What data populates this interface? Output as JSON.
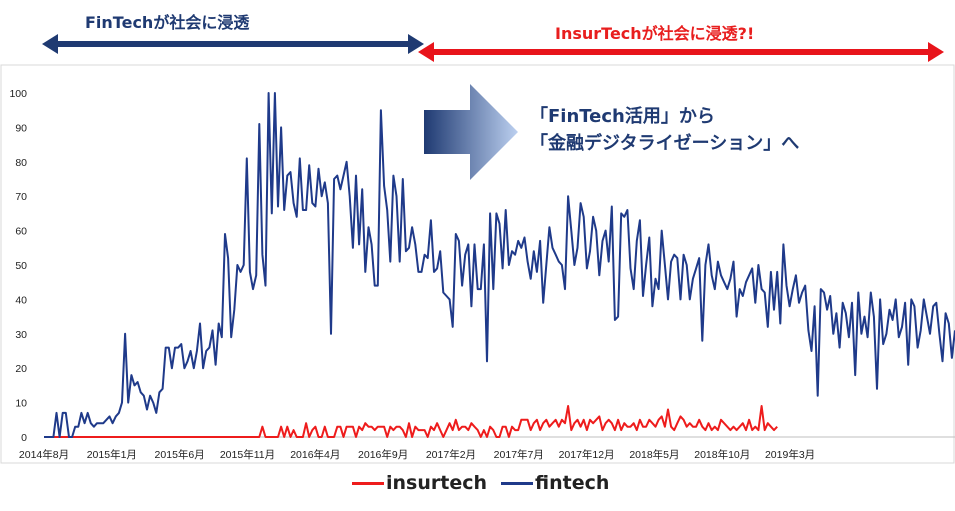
{
  "banner": {
    "fintech_era": "FinTechが社会に浸透",
    "insurtech_era": "InsurTechが社会に浸透?!"
  },
  "callout": {
    "line1": "「FinTech活用」から",
    "line2": "「金融デジタライゼーション」へ"
  },
  "colors": {
    "fintech": "#1f3a8a",
    "insurtech": "#ee1c1c",
    "arrow_blue": "#1f3a72",
    "arrow_red": "#e8141b"
  },
  "chart_data": {
    "type": "line",
    "title": "",
    "xlabel": "",
    "ylabel": "",
    "ylim": [
      0,
      100
    ],
    "yticks": [
      0,
      10,
      20,
      30,
      40,
      50,
      60,
      70,
      80,
      90,
      100
    ],
    "grid": false,
    "legend_position": "bottom",
    "xticks": [
      "2014年8月",
      "2015年1月",
      "2015年6月",
      "2015年11月",
      "2016年4月",
      "2016年9月",
      "2017年2月",
      "2017年7月",
      "2017年12月",
      "2018年5月",
      "2018年10月",
      "2019年3月"
    ],
    "x_start": "2014-08",
    "series": [
      {
        "name": "insurtech",
        "values": [
          0,
          0,
          0,
          0,
          0,
          0,
          0,
          0,
          0,
          0,
          0,
          0,
          0,
          0,
          0,
          0,
          0,
          0,
          0,
          0,
          0,
          0,
          0,
          0,
          0,
          0,
          0,
          0,
          0,
          0,
          0,
          0,
          0,
          0,
          0,
          0,
          0,
          0,
          0,
          0,
          0,
          0,
          0,
          0,
          0,
          0,
          0,
          0,
          0,
          0,
          0,
          0,
          0,
          0,
          0,
          0,
          0,
          0,
          0,
          0,
          0,
          0,
          0,
          0,
          0,
          0,
          0,
          0,
          0,
          0,
          3,
          0,
          0,
          0,
          0,
          0,
          3,
          0,
          3,
          0,
          2,
          0,
          0,
          0,
          4,
          0,
          2,
          3,
          0,
          0,
          3,
          0,
          0,
          0,
          3,
          3,
          0,
          3,
          3,
          3,
          0,
          3,
          2,
          4,
          3,
          3,
          2,
          3,
          3,
          3,
          0,
          3,
          2,
          3,
          3,
          2,
          0,
          4,
          0,
          3,
          2,
          2,
          2,
          0,
          3,
          2,
          4,
          2,
          0,
          2,
          4,
          2,
          5,
          2,
          3,
          3,
          2,
          4,
          3,
          2,
          0,
          2,
          0,
          3,
          2,
          0,
          0,
          3,
          3,
          0,
          3,
          2,
          2,
          5,
          5,
          5,
          2,
          4,
          5,
          2,
          4,
          5,
          3,
          4,
          5,
          3,
          5,
          4,
          9,
          2,
          4,
          5,
          3,
          5,
          2,
          5,
          4,
          5,
          6,
          2,
          4,
          5,
          4,
          2,
          5,
          2,
          4,
          3,
          3,
          4,
          2,
          5,
          3,
          3,
          5,
          4,
          3,
          5,
          6,
          3,
          8,
          3,
          2,
          4,
          6,
          5,
          3,
          4,
          3,
          3,
          5,
          3,
          2,
          4,
          2,
          3,
          2,
          5,
          4,
          3,
          2,
          3,
          2,
          3,
          4,
          2,
          5,
          2,
          3,
          2,
          9,
          2,
          4,
          3,
          2,
          3
        ]
      },
      {
        "name": "fintech",
        "values": [
          0,
          0,
          0,
          0,
          7,
          0,
          7,
          7,
          0,
          0,
          3,
          3,
          7,
          4,
          7,
          4,
          3,
          4,
          4,
          4,
          5,
          6,
          4,
          6,
          7,
          10,
          30,
          10,
          18,
          15,
          16,
          13,
          12,
          8,
          12,
          10,
          7,
          13,
          14,
          26,
          26,
          20,
          26,
          26,
          27,
          20,
          22,
          25,
          20,
          25,
          33,
          20,
          25,
          26,
          31,
          21,
          33,
          29,
          59,
          52,
          29,
          37,
          50,
          48,
          50,
          81,
          48,
          43,
          47,
          91,
          53,
          44,
          100,
          65,
          100,
          67,
          90,
          66,
          76,
          77,
          68,
          64,
          81,
          66,
          66,
          79,
          68,
          67,
          78,
          70,
          74,
          68,
          30,
          75,
          76,
          72,
          76,
          80,
          70,
          55,
          76,
          56,
          72,
          48,
          61,
          56,
          44,
          44,
          95,
          73,
          66,
          51,
          76,
          70,
          51,
          75,
          54,
          55,
          61,
          56,
          48,
          48,
          53,
          52,
          63,
          48,
          49,
          54,
          42,
          41,
          40,
          32,
          59,
          57,
          44,
          53,
          56,
          38,
          56,
          43,
          43,
          56,
          22,
          65,
          43,
          65,
          62,
          49,
          66,
          50,
          54,
          53,
          57,
          55,
          58,
          51,
          46,
          54,
          48,
          57,
          39,
          50,
          61,
          55,
          53,
          51,
          50,
          43,
          70,
          60,
          50,
          55,
          68,
          64,
          49,
          54,
          64,
          60,
          47,
          57,
          60,
          51,
          67,
          34,
          35,
          65,
          64,
          66,
          49,
          43,
          57,
          63,
          41,
          50,
          58,
          38,
          46,
          43,
          60,
          50,
          40,
          51,
          53,
          52,
          40,
          53,
          50,
          40,
          46,
          49,
          52,
          28,
          50,
          56,
          47,
          43,
          51,
          47,
          45,
          43,
          46,
          51,
          35,
          43,
          41,
          45,
          47,
          49,
          39,
          50,
          43,
          42,
          32,
          48,
          37,
          48,
          33,
          56,
          44,
          38,
          43,
          47,
          39,
          42,
          44,
          31,
          25,
          38,
          12,
          43,
          42,
          37,
          41,
          30,
          36,
          26,
          39,
          36,
          29,
          39,
          18,
          42,
          30,
          35,
          29,
          42,
          35,
          14,
          40,
          27,
          30,
          37,
          34,
          40,
          29,
          32,
          39,
          21,
          40,
          38,
          26,
          31,
          40,
          35,
          30,
          38,
          39,
          30,
          22,
          36,
          33,
          23,
          31
        ]
      }
    ]
  }
}
